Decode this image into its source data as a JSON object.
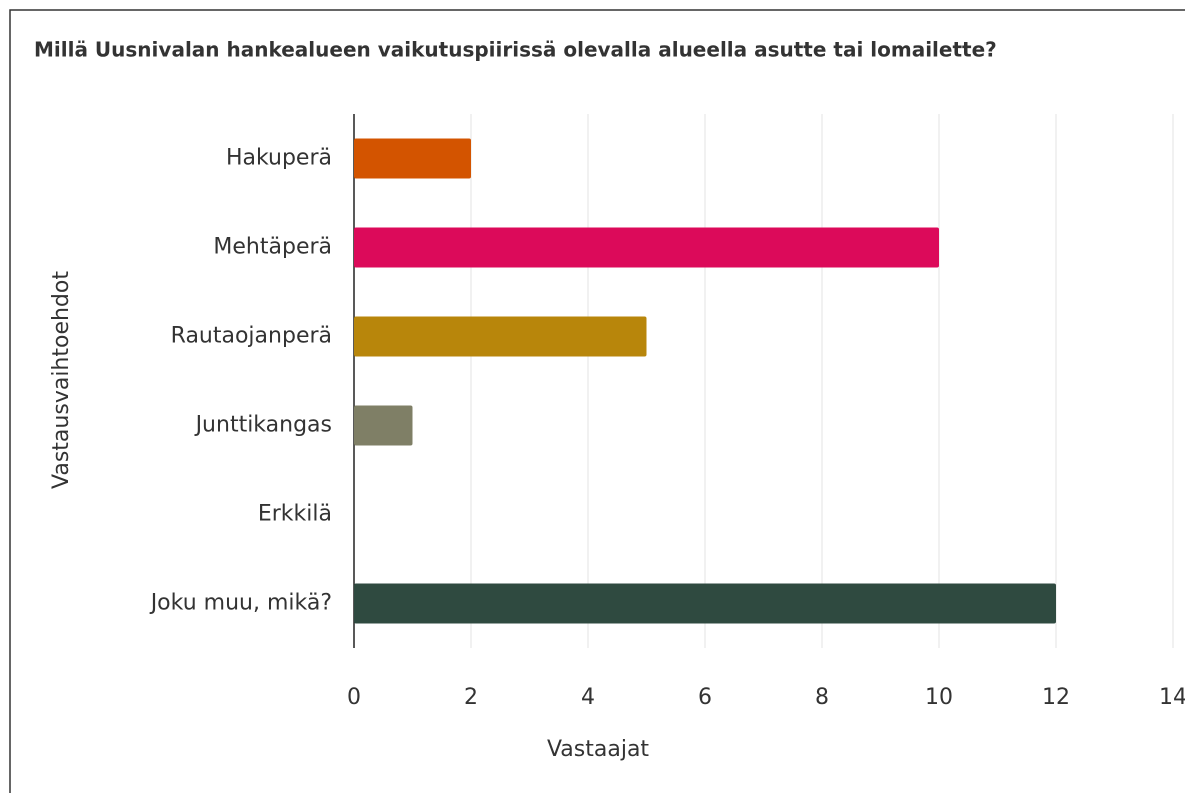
{
  "chart_data": {
    "type": "barh",
    "title": "Millä Uusnivalan hankealueen vaikutuspiirissä olevalla alueella asutte tai lomailette?",
    "categories": [
      "Hakuperä",
      "Mehtäperä",
      "Rautaojanperä",
      "Junttikangas",
      "Erkkilä",
      "Joku muu, mikä?"
    ],
    "values": [
      2,
      10,
      5,
      1,
      0,
      12
    ],
    "colors": [
      "#d35400",
      "#dc0a5a",
      "#b8860b",
      "#7f7f66",
      "#1f6fb5",
      "#2f4a40"
    ],
    "xlabel": "Vastaajat",
    "ylabel": "Vastausvaihtoehdot",
    "xlim": [
      0,
      14
    ],
    "xticks": [
      0,
      2,
      4,
      6,
      8,
      10,
      12,
      14
    ],
    "grid": true
  }
}
